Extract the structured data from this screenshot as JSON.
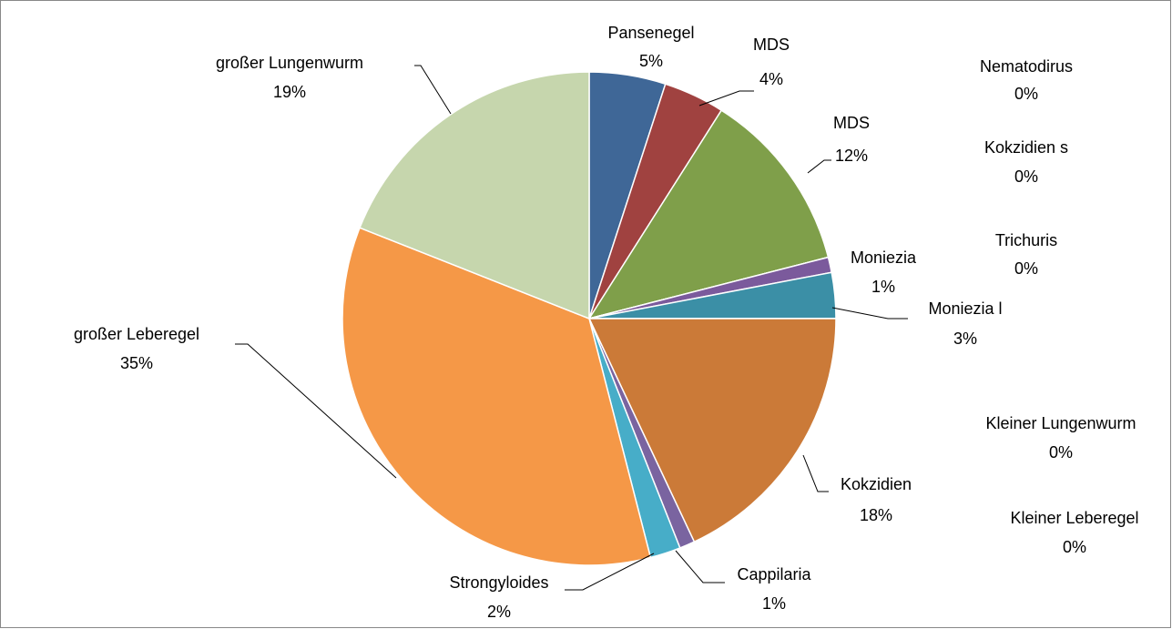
{
  "chart_data": {
    "type": "pie",
    "categories": [
      "Pansenegel",
      "MDS",
      "MDS",
      "Nematodirus",
      "Kokzidien s",
      "Trichuris",
      "Moniezia",
      "Moniezia l",
      "Kleiner Lungenwurm",
      "Kleiner Leberegel",
      "Kokzidien",
      "Cappilaria",
      "Strongyloides",
      "großer Leberegel",
      "großer Lungenwurm"
    ],
    "values": [
      5,
      4,
      12,
      0,
      0,
      0,
      1,
      3,
      0,
      0,
      18,
      1,
      2,
      35,
      19
    ],
    "value_labels": [
      "5%",
      "4%",
      "12%",
      "0%",
      "0%",
      "0%",
      "1%",
      "3%",
      "0%",
      "0%",
      "18%",
      "1%",
      "2%",
      "35%",
      "19%"
    ],
    "colors": [
      "#3f6797",
      "#a04240",
      "#7f9f4a",
      "#2c4d75",
      "#772c2a",
      "#5f7530",
      "#7b5a9c",
      "#3b8fa6",
      "#5b4373",
      "#276a7c",
      "#cb7a38",
      "#7a64a0",
      "#47adc8",
      "#f59847",
      "#c6d6ad"
    ]
  }
}
